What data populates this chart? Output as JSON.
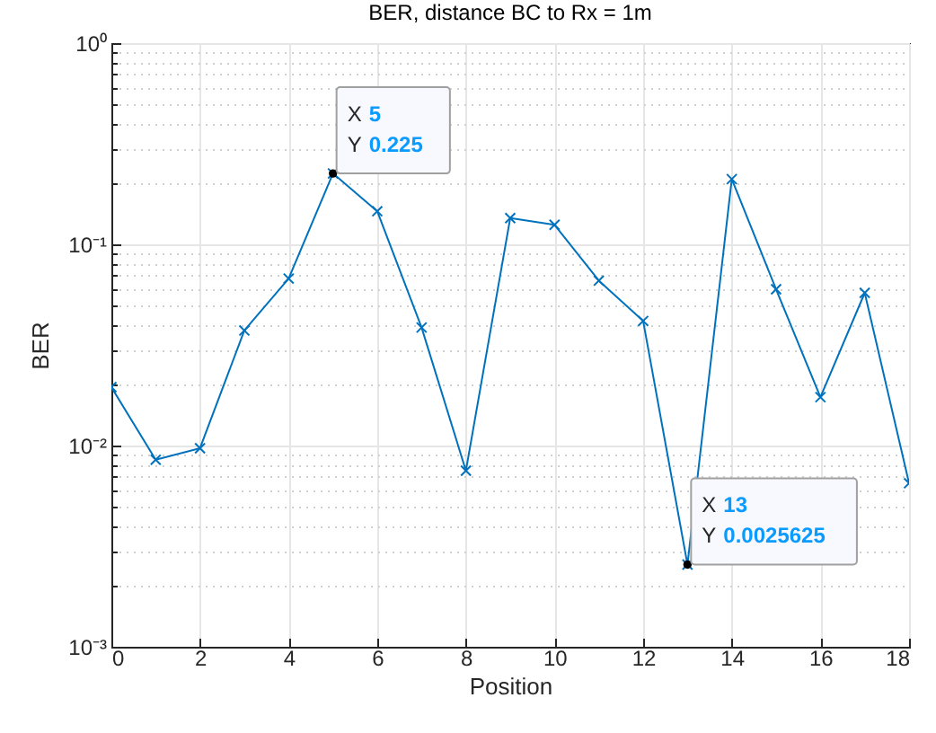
{
  "chart_data": {
    "type": "line",
    "title": "BER, distance BC to Rx = 1m",
    "xlabel": "Position",
    "ylabel": "BER",
    "x": [
      0,
      1,
      2,
      3,
      4,
      5,
      6,
      7,
      8,
      9,
      10,
      11,
      12,
      13,
      14,
      15,
      16,
      17,
      18
    ],
    "series": [
      {
        "color": "#0072bd",
        "values": [
          0.0195,
          0.0085,
          0.0097,
          0.0373,
          0.0676,
          0.225,
          0.146,
          0.0386,
          0.0075,
          0.135,
          0.125,
          0.066,
          0.0416,
          0.0025625,
          0.211,
          0.0598,
          0.0174,
          0.0574,
          0.0065
        ]
      }
    ],
    "annotations": [
      {
        "text": "X 5\nY 0.225",
        "x": 5,
        "y": 0.225
      },
      {
        "text": "X 13\nY 0.0025625",
        "x": 13,
        "y": 0.0025625
      }
    ],
    "xlim": [
      0,
      18
    ],
    "xticks": [
      0,
      2,
      4,
      6,
      8,
      10,
      12,
      14,
      16,
      18
    ],
    "ylim": [
      0.001,
      1
    ],
    "yticks": [
      {
        "value": 0.001,
        "label": "10⁻³"
      },
      {
        "value": 0.01,
        "label": "10⁻²"
      },
      {
        "value": 0.1,
        "label": "10⁻¹"
      },
      {
        "value": 1,
        "label": "10⁰"
      }
    ],
    "log": true,
    "grid": true,
    "marker": "cross",
    "line_style": "solid"
  }
}
